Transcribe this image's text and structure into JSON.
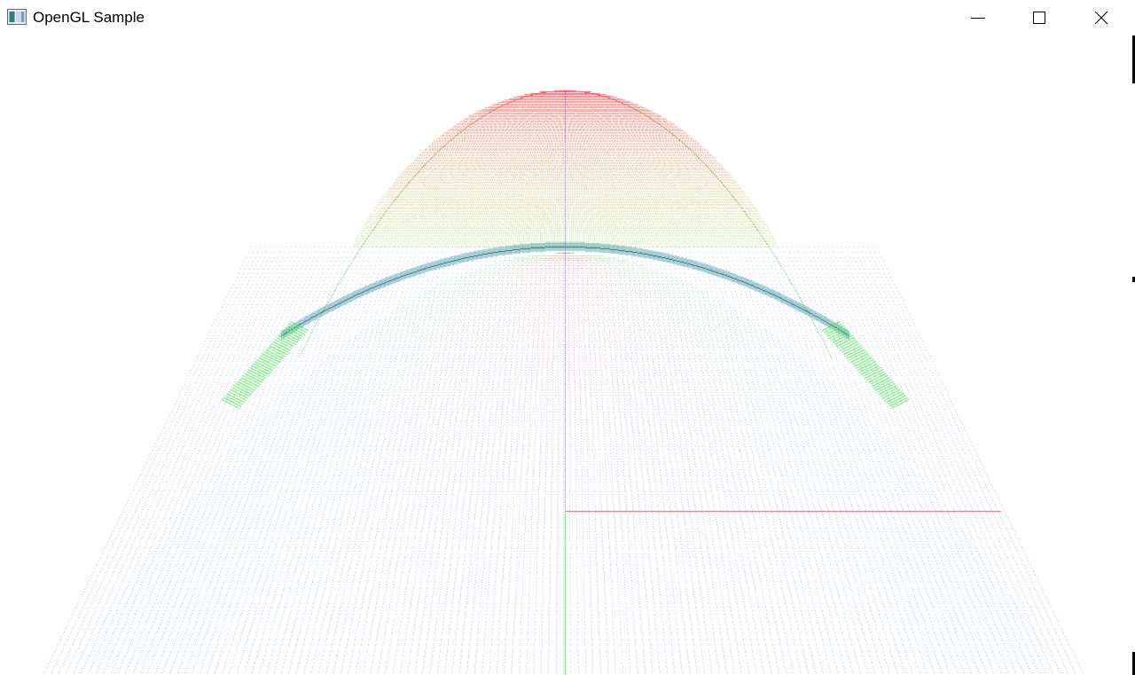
{
  "window": {
    "title": "OpenGL Sample",
    "icon": "window-app-icon",
    "controls": {
      "minimize": "minimize-icon",
      "maximize": "maximize-icon",
      "close": "close-icon"
    }
  },
  "scene": {
    "description_icon": "opengl-viewport",
    "colors": {
      "plane": "#6b6bff",
      "paraboloid_top": "#ff5a5a",
      "paraboloid_mid": "#5aff5a",
      "rim": "#1a7f8a",
      "axis_x": "#ff4d4d",
      "axis_y": "#33ff33",
      "axis_z": "#6060ff"
    }
  }
}
